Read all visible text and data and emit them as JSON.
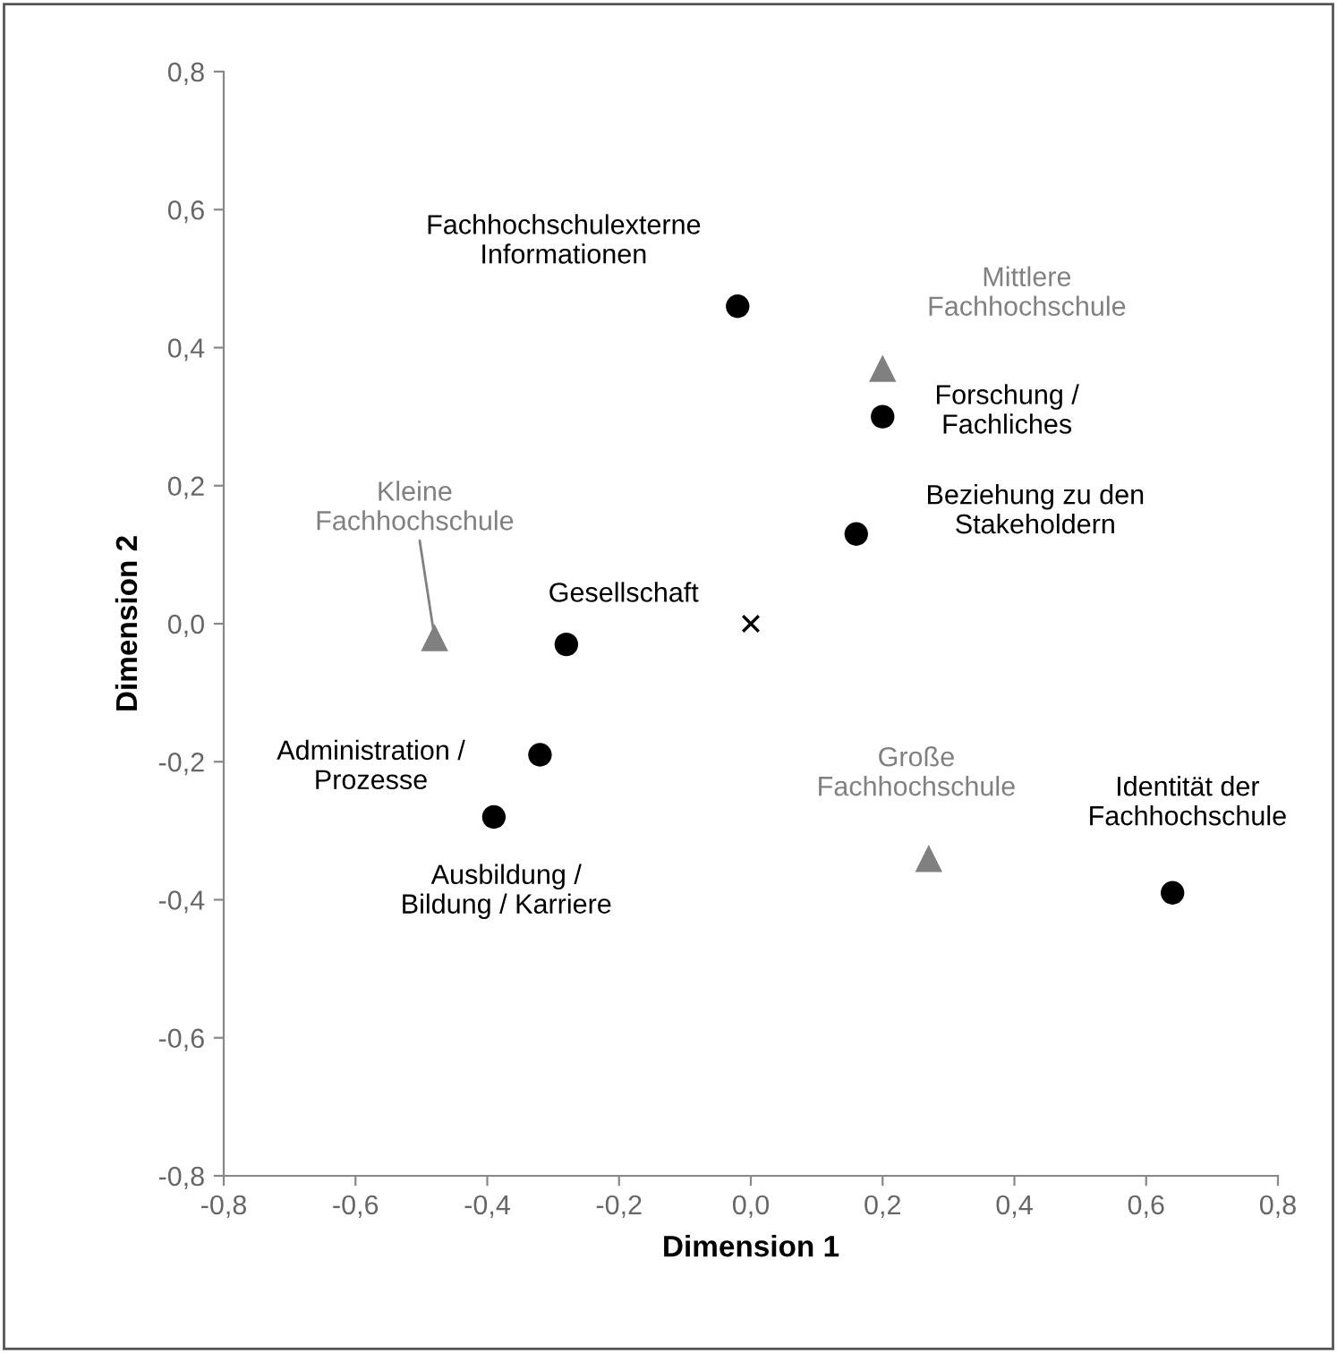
{
  "chart_data": {
    "type": "scatter",
    "xlabel": "Dimension 1",
    "ylabel": "Dimension 2",
    "xlim": [
      -0.8,
      0.8
    ],
    "ylim": [
      -0.8,
      0.8
    ],
    "xticks": [
      {
        "value": -0.8,
        "label": "-0,8"
      },
      {
        "value": -0.6,
        "label": "-0,6"
      },
      {
        "value": -0.4,
        "label": "-0,4"
      },
      {
        "value": -0.2,
        "label": "-0,2"
      },
      {
        "value": 0,
        "label": "0,0"
      },
      {
        "value": 0.2,
        "label": "0,2"
      },
      {
        "value": 0.4,
        "label": "0,4"
      },
      {
        "value": 0.6,
        "label": "0,6"
      },
      {
        "value": 0.8,
        "label": "0,8"
      }
    ],
    "yticks": [
      {
        "value": -0.8,
        "label": "-0,8"
      },
      {
        "value": -0.6,
        "label": "-0,6"
      },
      {
        "value": -0.4,
        "label": "-0,4"
      },
      {
        "value": -0.2,
        "label": "-0,2"
      },
      {
        "value": 0,
        "label": "0,0"
      },
      {
        "value": 0.2,
        "label": "0,2"
      },
      {
        "value": 0.4,
        "label": "0,4"
      },
      {
        "value": 0.6,
        "label": "0,6"
      },
      {
        "value": 0.8,
        "label": "0,8"
      }
    ],
    "grid": false,
    "series": [
      {
        "color": "#000000",
        "marker": "circle",
        "x": [
          -0.02,
          0.2,
          0.16,
          -0.28,
          -0.32,
          -0.39,
          0.64
        ],
        "values": [
          0.46,
          0.3,
          0.13,
          -0.03,
          -0.19,
          -0.28,
          -0.39
        ]
      },
      {
        "color": "#808080",
        "marker": "triangle",
        "x": [
          0.2,
          -0.48,
          0.27
        ],
        "values": [
          0.37,
          -0.02,
          -0.34
        ]
      },
      {
        "color": "#000000",
        "marker": "cross",
        "x": [
          0
        ],
        "values": [
          0
        ]
      }
    ],
    "annotations": [
      {
        "text": "Fachhochschulexterne\nInformationen",
        "x": -0.02,
        "y": 0.46
      },
      {
        "text": "Forschung /\nFachliches",
        "x": 0.2,
        "y": 0.3
      },
      {
        "text": "Beziehung zu den\nStakeholdern",
        "x": 0.16,
        "y": 0.13
      },
      {
        "text": "Gesellschaft",
        "x": -0.28,
        "y": -0.03
      },
      {
        "text": "Administration /\nProzesse",
        "x": -0.32,
        "y": -0.19
      },
      {
        "text": "Ausbildung /\nBildung / Karriere",
        "x": -0.39,
        "y": -0.28
      },
      {
        "text": "Identität der\nFachhochschule",
        "x": 0.64,
        "y": -0.39
      },
      {
        "text": "Mittlere\nFachhochschule",
        "x": 0.2,
        "y": 0.37
      },
      {
        "text": "Kleine\nFachhochschule",
        "x": -0.48,
        "y": -0.02
      },
      {
        "text": "Große\nFachhochschule",
        "x": 0.27,
        "y": -0.34
      }
    ]
  }
}
